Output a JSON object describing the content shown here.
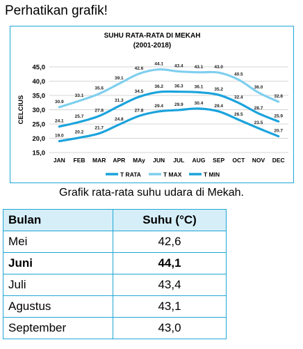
{
  "page": {
    "heading": "Perhatikan grafik!",
    "caption": "Grafik rata-rata suhu udara di Mekah."
  },
  "chart_data": {
    "type": "line",
    "title_line1": "SUHU RATA-RATA DI MEKAH",
    "title_line2": "(2001-2018)",
    "ylabel": "CELCIUS",
    "xlabel": "",
    "ylim": [
      15,
      45
    ],
    "y_ticks": [
      "15,0",
      "20,0",
      "25,0",
      "30,0",
      "35,0",
      "40,0",
      "45,0"
    ],
    "y_tick_values": [
      15,
      20,
      25,
      30,
      35,
      40,
      45
    ],
    "grid": true,
    "legend_position": "bottom",
    "categories": [
      "JAN",
      "FEB",
      "MAR",
      "APR",
      "MAy",
      "JUN",
      "JUL",
      "AUG",
      "SEP",
      "OCT",
      "NOV",
      "DEC"
    ],
    "series": [
      {
        "name": "T RATA",
        "color": "#1aa3dc",
        "values": [
          24.1,
          25.7,
          27.8,
          31.3,
          34.5,
          36.2,
          36.3,
          36.1,
          35.2,
          32.4,
          28.7,
          25.9
        ],
        "labels": [
          "24.1",
          "25.7",
          "27.8",
          "31.3",
          "34.5",
          "36.2",
          "36.3",
          "36.1",
          "35.2",
          "32.4",
          "28.7",
          "25.9"
        ]
      },
      {
        "name": "T MAX",
        "color": "#7fcfee",
        "values": [
          30.9,
          33.1,
          35.6,
          39.1,
          42.6,
          44.1,
          43.4,
          43.1,
          43.0,
          40.5,
          36.0,
          32.8
        ],
        "labels": [
          "30.9",
          "33.1",
          "35.6",
          "39.1",
          "42.6",
          "44.1",
          "43.4",
          "43.1",
          "43.0",
          "40.5",
          "36.0",
          "32.8"
        ]
      },
      {
        "name": "T MIN",
        "color": "#1aa3dc",
        "values": [
          19.0,
          20.2,
          21.7,
          24.8,
          27.8,
          29.4,
          29.9,
          30.4,
          29.4,
          26.5,
          23.5,
          20.7
        ],
        "labels": [
          "19.0",
          "20.2",
          "21.7",
          "24.8",
          "27.8",
          "29.4",
          "29.9",
          "30.4",
          "29.4",
          "26.5",
          "23.5",
          "20.7"
        ]
      }
    ]
  },
  "table": {
    "headers": [
      "Bulan",
      "Suhu (°C)"
    ],
    "rows": [
      {
        "month": "Mei",
        "temp": "42,6"
      },
      {
        "month": "Juni",
        "temp": "44,1"
      },
      {
        "month": "Juli",
        "temp": "43,4"
      },
      {
        "month": "Agustus",
        "temp": "43,1"
      },
      {
        "month": "September",
        "temp": "43,0"
      }
    ]
  },
  "colors": {
    "accent": "#1ea6d6",
    "header_bg": "#d6eef8"
  }
}
